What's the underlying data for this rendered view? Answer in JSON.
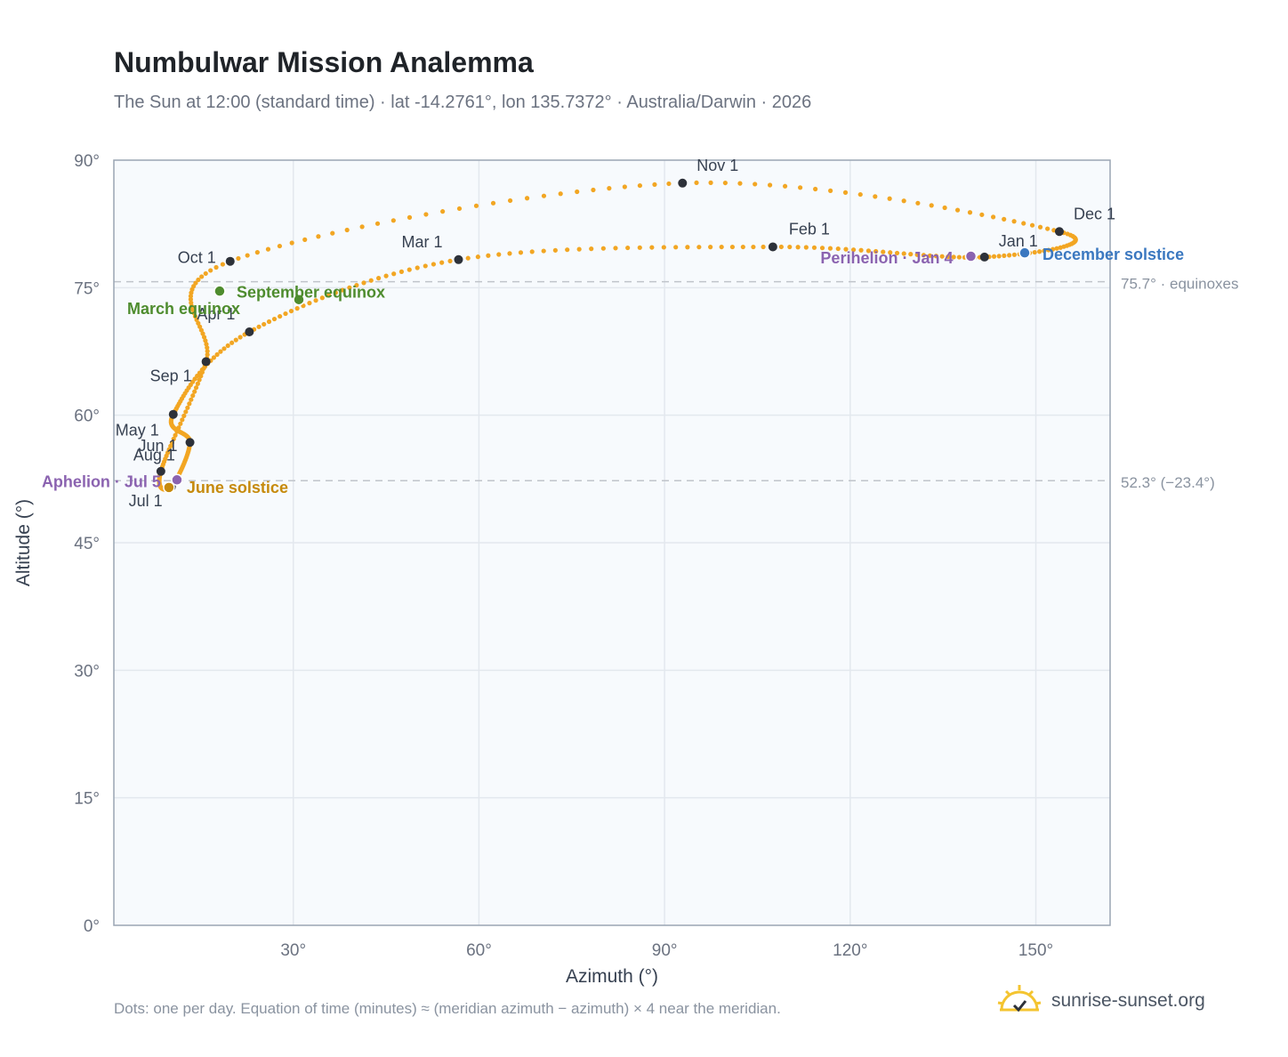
{
  "title": "Numbulwar Mission Analemma",
  "subtitle": "The Sun at 12:00 (standard time) · lat -14.2761°, lon 135.7372° · Australia/Darwin · 2026",
  "footnote": "Dots: one per day. Equation of time (minutes) ≈ (meridian azimuth − azimuth) × 4 near the meridian.",
  "brand": {
    "name": "sunrise-sunset.org",
    "icon": "sun-logo-icon"
  },
  "colors": {
    "curve": "#f2a623",
    "month_marker": "#2d3139",
    "equinox": "#4e8c2e",
    "june_solstice": "#c68a0c",
    "december_solstice": "#3b78c0",
    "perihelion_aphelion": "#8b63b0",
    "plot_bg": "#f7fafd",
    "grid": "#e3e8ee",
    "ref_line": "#c0c4ca"
  },
  "chart_data": {
    "type": "scatter",
    "xlabel": "Azimuth (°)",
    "ylabel": "Altitude (°)",
    "xlim": [
      1,
      162
    ],
    "ylim": [
      0,
      90
    ],
    "xticks": [
      30,
      60,
      90,
      120,
      150
    ],
    "yticks": [
      0,
      15,
      30,
      45,
      60,
      75,
      90
    ],
    "tick_suffix": "°",
    "grid": true,
    "reference_lines": [
      {
        "y": 75.7,
        "label": "75.7° · equinoxes"
      },
      {
        "y": 52.3,
        "label": "52.3° (−23.4°)"
      }
    ],
    "month_markers": [
      {
        "label": "Jan 1",
        "az": 141.7,
        "alt": 78.6
      },
      {
        "label": "Feb 1",
        "az": 107.5,
        "alt": 79.8
      },
      {
        "label": "Mar 1",
        "az": 56.7,
        "alt": 78.3
      },
      {
        "label": "Apr 1",
        "az": 22.9,
        "alt": 69.8
      },
      {
        "label": "May 1",
        "az": 10.6,
        "alt": 60.1
      },
      {
        "label": "Jun 1",
        "az": 13.3,
        "alt": 56.8
      },
      {
        "label": "Jul 1",
        "az": 10.3,
        "alt": 51.6
      },
      {
        "label": "Aug 1",
        "az": 8.6,
        "alt": 53.4
      },
      {
        "label": "Sep 1",
        "az": 15.9,
        "alt": 66.3
      },
      {
        "label": "Oct 1",
        "az": 19.8,
        "alt": 78.1
      },
      {
        "label": "Nov 1",
        "az": 92.9,
        "alt": 87.3
      },
      {
        "label": "Dec 1",
        "az": 153.8,
        "alt": 81.6
      }
    ],
    "events": [
      {
        "label": "March equinox",
        "az": 18.1,
        "alt": 74.6,
        "type": "equinox"
      },
      {
        "label": "September equinox",
        "az": 30.9,
        "alt": 73.6,
        "type": "equinox"
      },
      {
        "label": "June solstice",
        "az": 9.9,
        "alt": 51.5,
        "type": "june_solstice"
      },
      {
        "label": "December solstice",
        "az": 148.2,
        "alt": 79.1,
        "type": "december_solstice"
      },
      {
        "label": "Perihelion · Jan 4",
        "az": 139.5,
        "alt": 78.7,
        "type": "perihelion_aphelion"
      },
      {
        "label": "Aphelion · Jul 5",
        "az": 11.2,
        "alt": 52.4,
        "type": "perihelion_aphelion"
      }
    ]
  }
}
